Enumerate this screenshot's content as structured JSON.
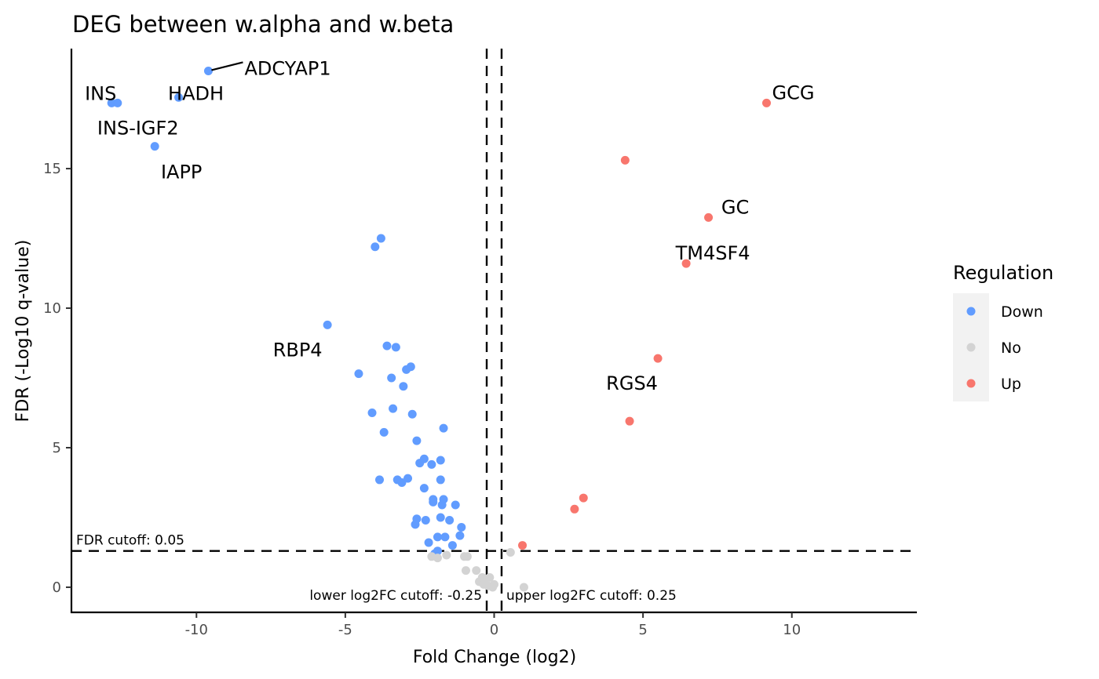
{
  "chart_data": {
    "type": "scatter",
    "title": "DEG between w.alpha and w.beta",
    "xlabel": "Fold Change (log2)",
    "ylabel": "FDR (-Log10 q-value)",
    "xlim": [
      -14.2,
      14.2
    ],
    "ylim": [
      -0.9,
      19.3
    ],
    "xticks": [
      -10,
      -5,
      0,
      5,
      10
    ],
    "xtick_labels": [
      "-10",
      "-5",
      "0",
      "5",
      "10"
    ],
    "yticks": [
      0,
      5,
      10,
      15
    ],
    "ytick_labels": [
      "0",
      "5",
      "10",
      "15"
    ],
    "grid": false,
    "legend": {
      "title": "Regulation",
      "position": "right",
      "entries": [
        {
          "label": "Down",
          "color": "#619CFF"
        },
        {
          "label": "No",
          "color": "#D3D3D3"
        },
        {
          "label": "Up",
          "color": "#F8766D"
        }
      ]
    },
    "cutoffs": {
      "fdr": {
        "value": 1.3,
        "label": "FDR cutoff: 0.05"
      },
      "lower_fc": {
        "value": -0.25,
        "label": "lower log2FC cutoff: -0.25"
      },
      "upper_fc": {
        "value": 0.25,
        "label": "upper log2FC cutoff: 0.25"
      }
    },
    "series": [
      {
        "name": "Down",
        "color": "#619CFF",
        "points": [
          [
            -12.85,
            17.35
          ],
          [
            -12.65,
            17.35
          ],
          [
            -10.6,
            17.55
          ],
          [
            -9.6,
            18.5
          ],
          [
            -11.4,
            15.8
          ],
          [
            -3.8,
            12.5
          ],
          [
            -4.0,
            12.2
          ],
          [
            -5.6,
            9.4
          ],
          [
            -3.6,
            8.65
          ],
          [
            -3.3,
            8.6
          ],
          [
            -2.8,
            7.9
          ],
          [
            -2.95,
            7.8
          ],
          [
            -4.55,
            7.65
          ],
          [
            -3.45,
            7.5
          ],
          [
            -3.05,
            7.2
          ],
          [
            -4.1,
            6.25
          ],
          [
            -3.4,
            6.4
          ],
          [
            -2.75,
            6.2
          ],
          [
            -1.7,
            5.7
          ],
          [
            -3.7,
            5.55
          ],
          [
            -2.6,
            5.25
          ],
          [
            -2.35,
            4.6
          ],
          [
            -2.5,
            4.45
          ],
          [
            -1.8,
            4.55
          ],
          [
            -2.1,
            4.4
          ],
          [
            -3.85,
            3.85
          ],
          [
            -3.25,
            3.85
          ],
          [
            -3.1,
            3.75
          ],
          [
            -2.9,
            3.9
          ],
          [
            -1.8,
            3.85
          ],
          [
            -2.35,
            3.55
          ],
          [
            -2.05,
            3.15
          ],
          [
            -1.7,
            3.15
          ],
          [
            -2.05,
            3.05
          ],
          [
            -1.75,
            2.95
          ],
          [
            -1.3,
            2.95
          ],
          [
            -2.6,
            2.45
          ],
          [
            -2.3,
            2.4
          ],
          [
            -1.8,
            2.5
          ],
          [
            -1.5,
            2.4
          ],
          [
            -2.65,
            2.25
          ],
          [
            -1.1,
            2.15
          ],
          [
            -1.9,
            1.8
          ],
          [
            -1.65,
            1.8
          ],
          [
            -1.15,
            1.85
          ],
          [
            -2.2,
            1.6
          ],
          [
            -1.4,
            1.5
          ],
          [
            -1.9,
            1.3
          ],
          [
            -2.0,
            1.2
          ]
        ]
      },
      {
        "name": "No",
        "color": "#D3D3D3",
        "points": [
          [
            -2.1,
            1.1
          ],
          [
            -1.9,
            1.05
          ],
          [
            -1.6,
            1.15
          ],
          [
            -1.0,
            1.1
          ],
          [
            -0.9,
            1.1
          ],
          [
            -0.95,
            0.6
          ],
          [
            -0.6,
            0.6
          ],
          [
            -0.4,
            0.35
          ],
          [
            -0.3,
            0.3
          ],
          [
            -0.15,
            0.35
          ],
          [
            -0.5,
            0.2
          ],
          [
            -0.35,
            0.1
          ],
          [
            -0.2,
            0.05
          ],
          [
            0.0,
            0.1
          ],
          [
            -0.05,
            0.0
          ],
          [
            0.55,
            1.25
          ],
          [
            1.0,
            0.0
          ]
        ]
      },
      {
        "name": "Up",
        "color": "#F8766D",
        "points": [
          [
            9.15,
            17.35
          ],
          [
            4.4,
            15.3
          ],
          [
            7.2,
            13.25
          ],
          [
            6.45,
            11.6
          ],
          [
            5.5,
            8.2
          ],
          [
            4.55,
            5.95
          ],
          [
            3.0,
            3.2
          ],
          [
            2.7,
            2.8
          ],
          [
            0.95,
            1.5
          ]
        ]
      }
    ],
    "labels": [
      {
        "text": "INS",
        "x": -12.85,
        "y": 17.35
      },
      {
        "text": "INS-IGF2",
        "x": -12.65,
        "y": 17.35
      },
      {
        "text": "HADH",
        "x": -10.6,
        "y": 17.55
      },
      {
        "text": "ADCYAP1",
        "x": -9.6,
        "y": 18.5
      },
      {
        "text": "IAPP",
        "x": -11.4,
        "y": 15.8
      },
      {
        "text": "RBP4",
        "x": -5.6,
        "y": 9.4
      },
      {
        "text": "GCG",
        "x": 9.15,
        "y": 17.35
      },
      {
        "text": "GC",
        "x": 7.2,
        "y": 13.25
      },
      {
        "text": "TM4SF4",
        "x": 6.45,
        "y": 11.6
      },
      {
        "text": "RGS4",
        "x": 5.5,
        "y": 8.2
      }
    ]
  }
}
